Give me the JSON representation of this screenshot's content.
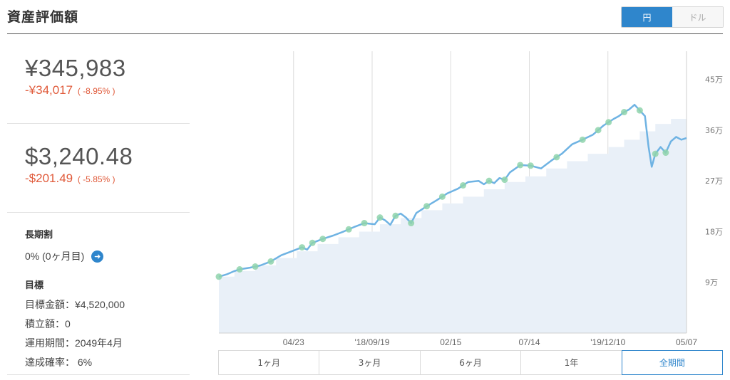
{
  "header": {
    "title": "資産評価額",
    "currency_options": [
      {
        "label": "円",
        "active": true
      },
      {
        "label": "ドル",
        "active": false
      }
    ]
  },
  "summary": {
    "jpy": {
      "amount": "¥345,983",
      "change": "-¥34,017",
      "change_pct": "( -8.95% )"
    },
    "usd": {
      "amount": "$3,240.48",
      "change": "-$201.49",
      "change_pct": "( -5.85% )"
    }
  },
  "long_term": {
    "label": "長期割",
    "value": "0% (0ヶ月目)"
  },
  "goal": {
    "label": "目標",
    "lines": [
      "目標金額：¥4,520,000",
      "積立額：0",
      "運用期間：2049年4月",
      "達成確率： 6%"
    ]
  },
  "colors": {
    "accent": "#2f86cc",
    "negative": "#e05a3a",
    "line": "#6fb3e3",
    "area": "#e9f0f8",
    "marker": "#8fd4ac"
  },
  "chart_data": {
    "type": "line",
    "x_ticks": [
      "04/23",
      "'18/09/19",
      "02/15",
      "07/14",
      "'19/12/10",
      "05/07"
    ],
    "y_ticks": [
      "9万",
      "18万",
      "27万",
      "36万",
      "45万"
    ],
    "y_tick_values": [
      90000,
      180000,
      270000,
      360000,
      450000
    ],
    "ylim": [
      0,
      500000
    ],
    "grid": true,
    "series": [
      {
        "role": "valuation",
        "values": [
          [
            0,
            100000
          ],
          [
            1.5,
            104000
          ],
          [
            3,
            110000
          ],
          [
            4,
            113000
          ],
          [
            6,
            116000
          ],
          [
            8,
            120000
          ],
          [
            10,
            127000
          ],
          [
            12,
            138000
          ],
          [
            14,
            145000
          ],
          [
            16,
            152000
          ],
          [
            17,
            148000
          ],
          [
            18,
            160000
          ],
          [
            20,
            167000
          ],
          [
            22,
            173000
          ],
          [
            24,
            180000
          ],
          [
            26,
            188000
          ],
          [
            28,
            195000
          ],
          [
            30,
            193000
          ],
          [
            31,
            205000
          ],
          [
            32,
            200000
          ],
          [
            33,
            192000
          ],
          [
            34,
            208000
          ],
          [
            35,
            212000
          ],
          [
            36,
            205000
          ],
          [
            37,
            195000
          ],
          [
            38,
            213000
          ],
          [
            40,
            225000
          ],
          [
            42,
            236000
          ],
          [
            44,
            248000
          ],
          [
            46,
            256000
          ],
          [
            48,
            268000
          ],
          [
            50,
            270000
          ],
          [
            51,
            264000
          ],
          [
            52,
            270000
          ],
          [
            53,
            266000
          ],
          [
            54,
            275000
          ],
          [
            55,
            272000
          ],
          [
            56,
            285000
          ],
          [
            58,
            298000
          ],
          [
            60,
            297000
          ],
          [
            62,
            292000
          ],
          [
            64,
            306000
          ],
          [
            66,
            318000
          ],
          [
            68,
            335000
          ],
          [
            70,
            343000
          ],
          [
            72,
            352000
          ],
          [
            74,
            368000
          ],
          [
            76,
            380000
          ],
          [
            77,
            385000
          ],
          [
            78,
            392000
          ],
          [
            79,
            397000
          ],
          [
            80,
            405000
          ],
          [
            81,
            395000
          ],
          [
            82,
            385000
          ],
          [
            82.7,
            330000
          ],
          [
            83.3,
            295000
          ],
          [
            84,
            318000
          ],
          [
            85,
            330000
          ],
          [
            86,
            320000
          ],
          [
            87,
            340000
          ],
          [
            88,
            348000
          ],
          [
            89,
            343000
          ],
          [
            90,
            345983
          ]
        ]
      },
      {
        "role": "principal",
        "steps": [
          [
            0,
            100000
          ],
          [
            3,
            110000
          ],
          [
            7,
            120000
          ],
          [
            11,
            133000
          ],
          [
            15,
            145000
          ],
          [
            19,
            158000
          ],
          [
            23,
            170000
          ],
          [
            27,
            180000
          ],
          [
            31,
            193000
          ],
          [
            35,
            204000
          ],
          [
            39,
            218000
          ],
          [
            43,
            230000
          ],
          [
            47,
            242000
          ],
          [
            51,
            255000
          ],
          [
            55,
            268000
          ],
          [
            59,
            278000
          ],
          [
            63,
            292000
          ],
          [
            67,
            305000
          ],
          [
            71,
            318000
          ],
          [
            75,
            330000
          ],
          [
            78,
            343000
          ],
          [
            81,
            358000
          ],
          [
            84,
            371000
          ],
          [
            87,
            380000
          ],
          [
            90,
            380000
          ]
        ]
      }
    ],
    "markers_x": [
      0,
      4,
      7,
      10,
      16,
      18,
      20,
      25,
      28,
      31,
      34,
      37,
      40,
      43,
      47,
      52,
      55,
      58,
      60,
      65,
      70,
      73,
      75,
      78,
      81,
      84,
      86
    ]
  },
  "range_tabs": [
    {
      "label": "1ヶ月",
      "active": false
    },
    {
      "label": "3ヶ月",
      "active": false
    },
    {
      "label": "6ヶ月",
      "active": false
    },
    {
      "label": "1年",
      "active": false
    },
    {
      "label": "全期間",
      "active": true
    }
  ]
}
